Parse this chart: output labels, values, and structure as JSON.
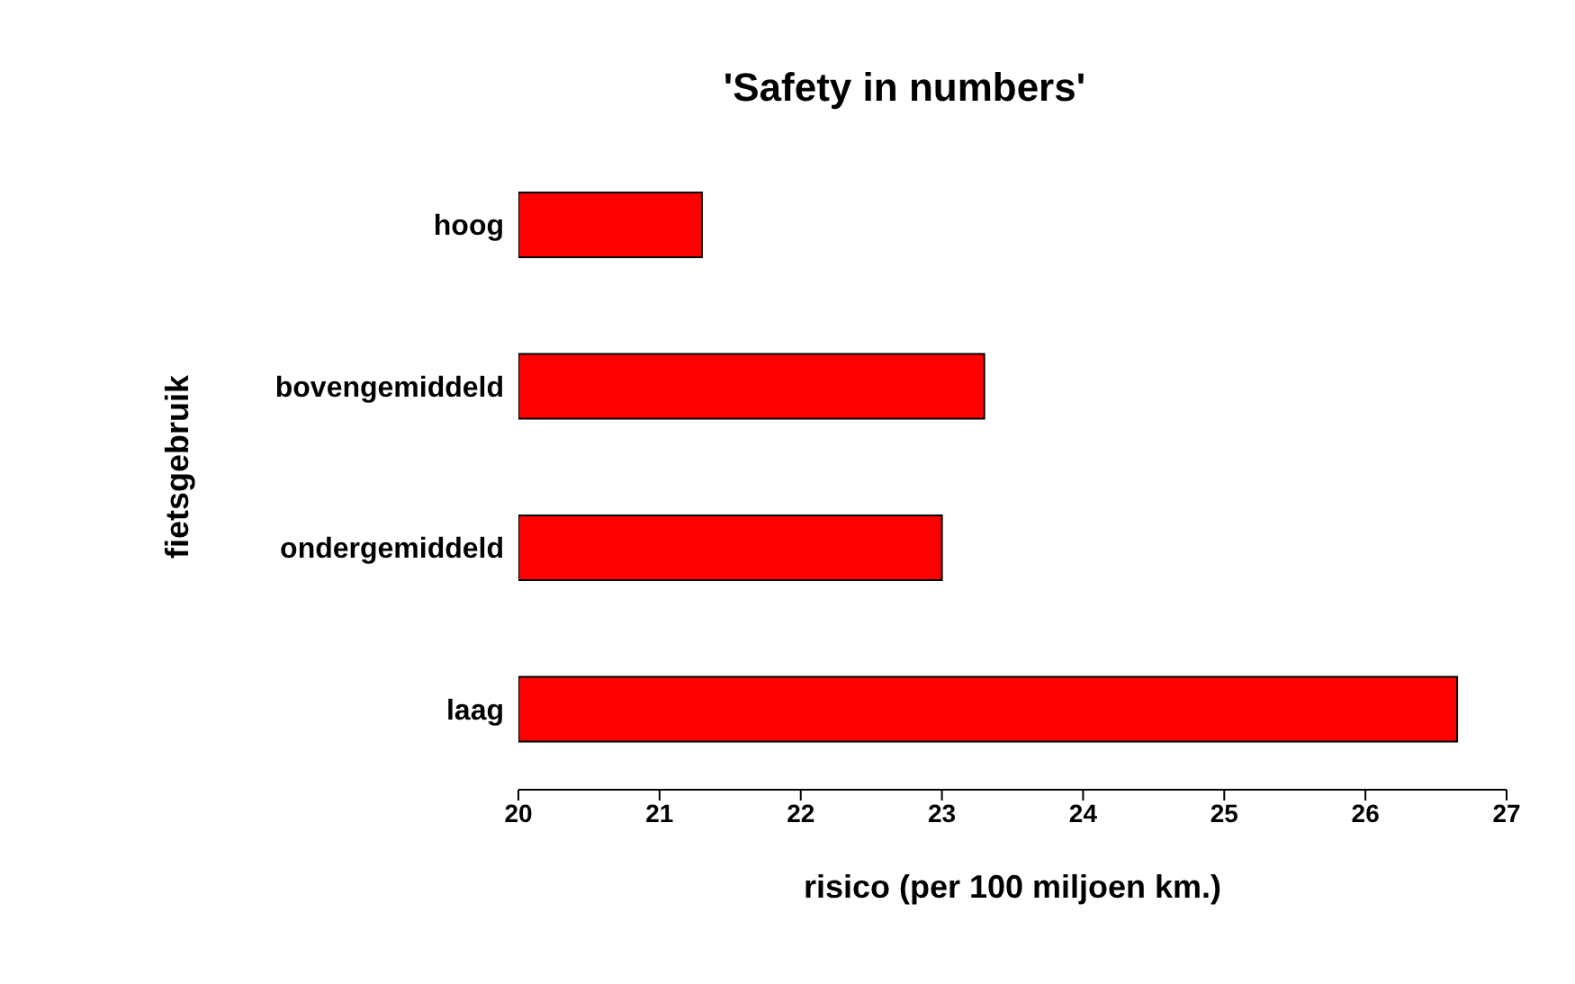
{
  "chart_data": {
    "type": "bar",
    "orientation": "horizontal",
    "title": "'Safety in numbers'",
    "xlabel": "risico (per 100 miljoen km.)",
    "ylabel": "fietsgebruik",
    "categories": [
      "hoog",
      "bovengemiddeld",
      "ondergemiddeld",
      "laag"
    ],
    "values": [
      21.3,
      23.3,
      23.0,
      26.65
    ],
    "color": "#ff0000",
    "xlim": [
      20,
      27
    ],
    "xticks": [
      20,
      21,
      22,
      23,
      24,
      25,
      26,
      27
    ],
    "grid": false
  }
}
